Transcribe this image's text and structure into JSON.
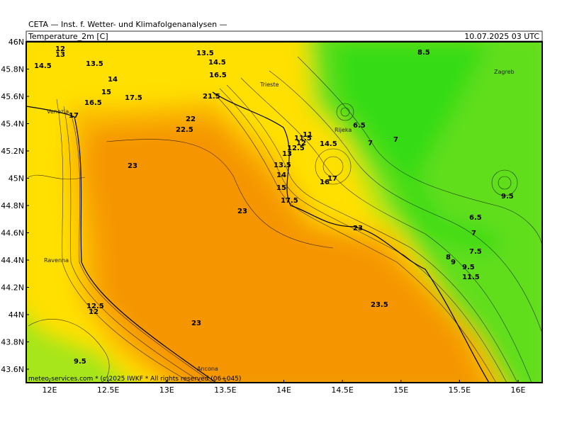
{
  "header": {
    "title": "CETA — Inst. f. Wetter- und Klimafolgenanalysen —",
    "variable": "Temperature_2m [C]",
    "valid_time": "10.07.2025 03 UTC"
  },
  "footer": "meteo-services.com * (c)2025 IWKF * All rights reserved (06+045)",
  "lon_labels": [
    {
      "value": 12,
      "label": "12E"
    },
    {
      "value": 12.5,
      "label": "12.5E"
    },
    {
      "value": 13,
      "label": "13E"
    },
    {
      "value": 13.5,
      "label": "13.5E"
    },
    {
      "value": 14,
      "label": "14E"
    },
    {
      "value": 14.5,
      "label": "14.5E"
    },
    {
      "value": 15,
      "label": "15E"
    },
    {
      "value": 15.5,
      "label": "15.5E"
    },
    {
      "value": 16,
      "label": "16E"
    }
  ],
  "lat_labels": [
    {
      "value": 46,
      "label": "46N"
    },
    {
      "value": 45.8,
      "label": "45.8N"
    },
    {
      "value": 45.6,
      "label": "45.6N"
    },
    {
      "value": 45.4,
      "label": "45.4N"
    },
    {
      "value": 45.2,
      "label": "45.2N"
    },
    {
      "value": 45,
      "label": "45N"
    },
    {
      "value": 44.8,
      "label": "44.8N"
    },
    {
      "value": 44.6,
      "label": "44.6N"
    },
    {
      "value": 44.4,
      "label": "44.4N"
    },
    {
      "value": 44.2,
      "label": "44.2N"
    },
    {
      "value": 44,
      "label": "44N"
    },
    {
      "value": 43.8,
      "label": "43.8N"
    },
    {
      "value": 43.6,
      "label": "43.6N"
    }
  ],
  "cities": [
    "Trieste",
    "Rijeka",
    "Zagreb",
    "Venezia",
    "Ravenna",
    "Ancona"
  ],
  "contour_labels": [
    "12",
    "13",
    "14.5",
    "13.5",
    "13.5",
    "14.5",
    "14",
    "16.5",
    "17.5",
    "15",
    "16.5",
    "17",
    "22",
    "22.5",
    "21.5",
    "23",
    "23",
    "14.5",
    "11",
    "11.5",
    "12",
    "12.5",
    "13",
    "13.5",
    "14",
    "6.5",
    "7",
    "7",
    "8.5",
    "9.5",
    "6.5",
    "7",
    "7.5",
    "8",
    "9",
    "9.5",
    "11.5",
    "23.5",
    "12.5",
    "12",
    "23",
    "9.5",
    "15",
    "17.5",
    "16",
    "17",
    "23"
  ]
}
